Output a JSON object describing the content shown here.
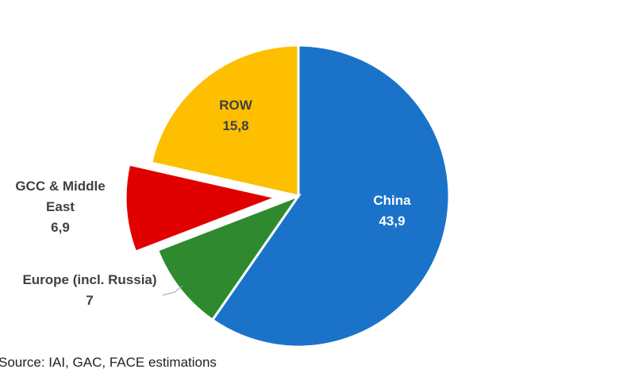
{
  "chart_data": {
    "type": "pie",
    "categories": [
      "China",
      "Europe (incl. Russia)",
      "GCC & Middle East",
      "ROW"
    ],
    "values": [
      43.9,
      7,
      6.9,
      15.8
    ],
    "value_labels": [
      "43,9",
      "7",
      "6,9",
      "15,8"
    ],
    "colors": [
      "#1a73c9",
      "#2f8a2f",
      "#e10000",
      "#fdbf00"
    ],
    "explode": [
      0,
      0,
      1,
      0
    ],
    "source": "Source: IAI, GAC, FACE estimations"
  }
}
